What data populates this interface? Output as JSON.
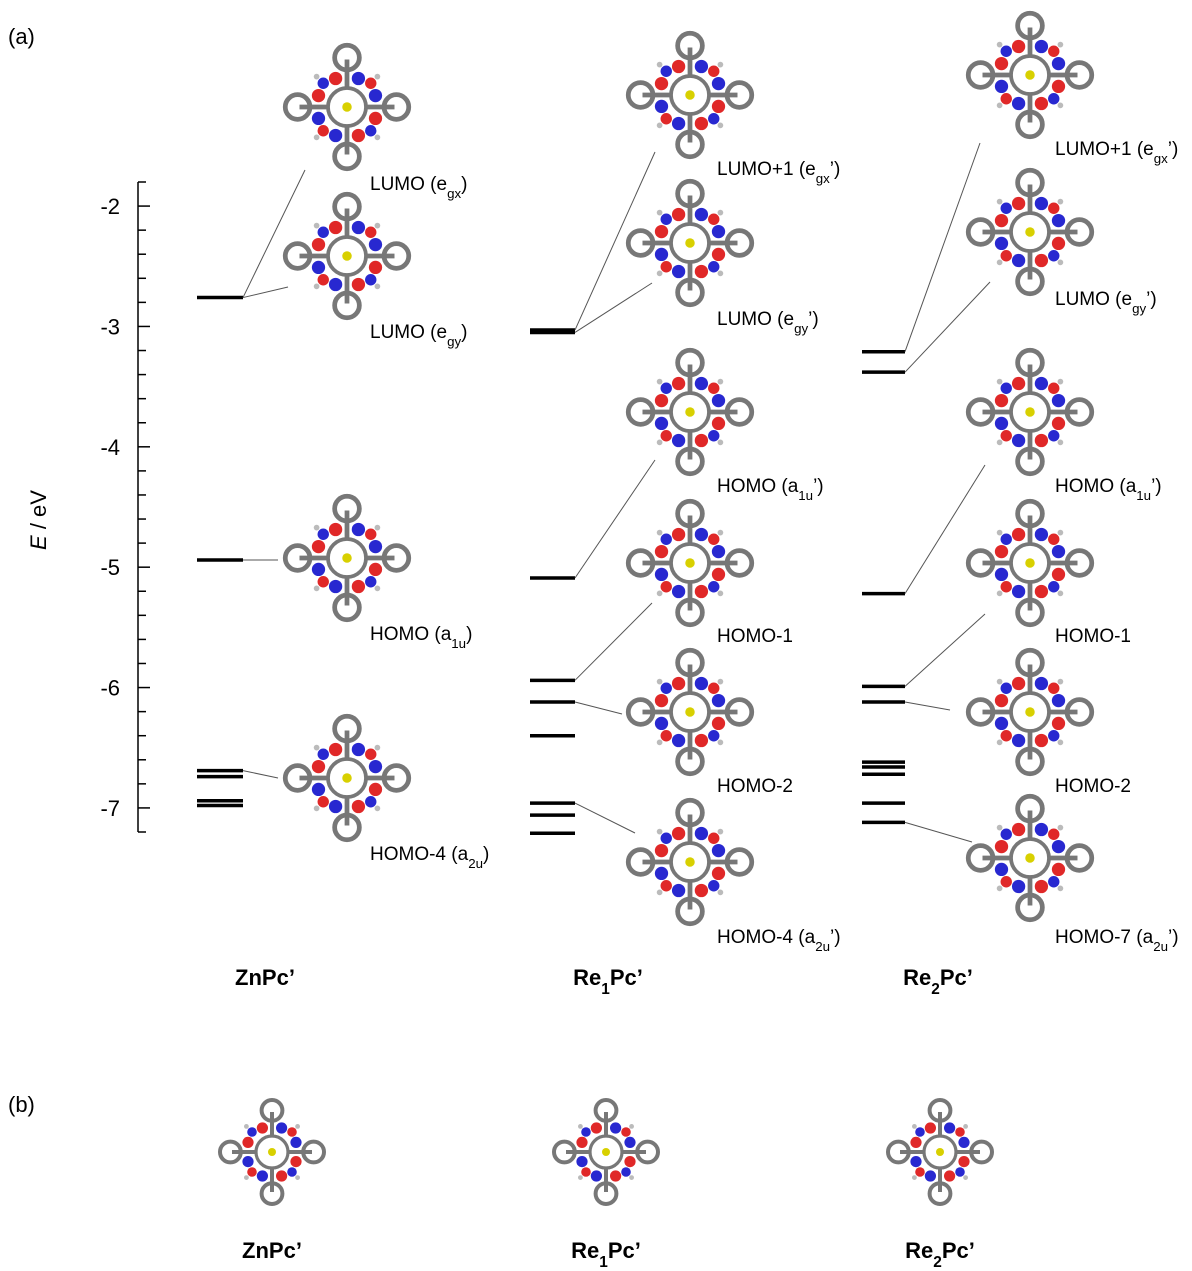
{
  "chart_data": {
    "type": "energy-levels",
    "panel_label": "(a)",
    "y_label": [
      "E",
      " / eV"
    ],
    "ylim": [
      -1.8,
      -7.2
    ],
    "yticks": [
      -2,
      -3,
      -4,
      -5,
      -6,
      -7
    ],
    "minor_yticks": [
      -1.8,
      -2.2,
      -2.4,
      -2.6,
      -2.8,
      -3.2,
      -3.4,
      -3.6,
      -3.8,
      -4.2,
      -4.4,
      -4.6,
      -4.8,
      -5.2,
      -5.4,
      -5.6,
      -5.8,
      -6.2,
      -6.4,
      -6.6,
      -6.8,
      -7.2
    ],
    "series": [
      {
        "name": [
          "ZnPc’"
        ],
        "color": "#000000",
        "values": [
          -2.76,
          -4.94,
          -6.69,
          -6.74,
          -6.94,
          -6.98
        ],
        "orbitals": [
          [
            "LUMO (e",
            "gx",
            ")"
          ],
          [
            "LUMO (e",
            "gy",
            ")"
          ],
          [
            "HOMO (a",
            "1u",
            ")"
          ],
          [
            "HOMO-4 (a",
            "2u",
            ")"
          ]
        ]
      },
      {
        "name": [
          "Re",
          "1",
          "Pc’"
        ],
        "color": "#000000",
        "values": [
          -3.03,
          -3.05,
          -5.09,
          -5.94,
          -6.12,
          -6.4,
          -6.96,
          -7.06,
          -7.21
        ],
        "orbitals": [
          [
            "LUMO+1 (e",
            "gx",
            "’)"
          ],
          [
            "LUMO (e",
            "gy",
            "’)"
          ],
          [
            "HOMO (a",
            "1u",
            "’)"
          ],
          [
            "HOMO-1"
          ],
          [
            "HOMO-2"
          ],
          [
            "HOMO-4 (a",
            "2u",
            "’)"
          ]
        ]
      },
      {
        "name": [
          "Re",
          "2",
          "Pc’"
        ],
        "color": "#000000",
        "values": [
          -3.21,
          -3.38,
          -5.22,
          -5.99,
          -6.12,
          -6.62,
          -6.66,
          -6.72,
          -6.96,
          -7.12
        ],
        "orbitals": [
          [
            "LUMO+1 (e",
            "gx",
            "’)"
          ],
          [
            "LUMO (e",
            "gy",
            "’)"
          ],
          [
            "HOMO (a",
            "1u",
            "’)"
          ],
          [
            "HOMO-1"
          ],
          [
            "HOMO-2"
          ],
          [
            "HOMO-7 (a",
            "2u",
            "’)"
          ]
        ]
      }
    ]
  },
  "panel_b": {
    "label": "(b)",
    "compounds": [
      [
        "ZnPc’"
      ],
      [
        "Re",
        "1",
        "Pc’"
      ],
      [
        "Re",
        "2",
        "Pc’"
      ]
    ]
  }
}
